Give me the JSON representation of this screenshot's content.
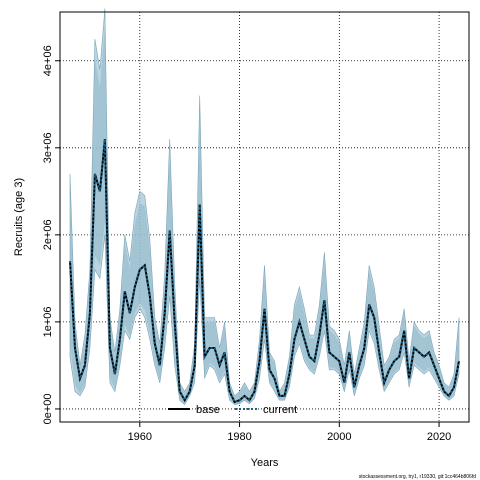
{
  "chart_data": {
    "type": "area",
    "title": "",
    "xlabel": "Years",
    "ylabel": "Recruits (age 3)",
    "xlim": [
      1944,
      2026
    ],
    "ylim": [
      -150000,
      4560000
    ],
    "x_ticks": [
      1960,
      1980,
      2000,
      2020
    ],
    "x_tick_labels": [
      "1960",
      "1980",
      "2000",
      "2020"
    ],
    "y_ticks": [
      0,
      1000000,
      2000000,
      3000000,
      4000000
    ],
    "y_tick_labels": [
      "0e+00",
      "1e+06",
      "2e+06",
      "3e+06",
      "4e+06"
    ],
    "grid": true,
    "legend_position": "bottom-center",
    "colors": {
      "band_base": "#a3c6d6",
      "band_current": "#8fb6c6",
      "base_line": "#000000",
      "current_line": "#1a5f85"
    },
    "x": [
      1946,
      1947,
      1948,
      1949,
      1950,
      1951,
      1952,
      1953,
      1954,
      1955,
      1956,
      1957,
      1958,
      1959,
      1960,
      1961,
      1962,
      1963,
      1964,
      1965,
      1966,
      1967,
      1968,
      1969,
      1970,
      1971,
      1972,
      1973,
      1974,
      1975,
      1976,
      1977,
      1978,
      1979,
      1980,
      1981,
      1982,
      1983,
      1984,
      1985,
      1986,
      1987,
      1988,
      1989,
      1990,
      1991,
      1992,
      1993,
      1994,
      1995,
      1996,
      1997,
      1998,
      1999,
      2000,
      2001,
      2002,
      2003,
      2004,
      2005,
      2006,
      2007,
      2008,
      2009,
      2010,
      2011,
      2012,
      2013,
      2014,
      2015,
      2016,
      2017,
      2018,
      2019,
      2020,
      2021,
      2022,
      2023,
      2024
    ],
    "series": [
      {
        "name": "base",
        "values": [
          1700000,
          700000,
          350000,
          500000,
          1100000,
          2700000,
          2500000,
          3100000,
          700000,
          400000,
          800000,
          1350000,
          1100000,
          1400000,
          1600000,
          1650000,
          1300000,
          750000,
          500000,
          1100000,
          2050000,
          1000000,
          200000,
          100000,
          200000,
          500000,
          2350000,
          600000,
          700000,
          700000,
          500000,
          650000,
          200000,
          80000,
          100000,
          150000,
          100000,
          200000,
          550000,
          1150000,
          450000,
          350000,
          150000,
          150000,
          400000,
          800000,
          1000000,
          800000,
          600000,
          550000,
          850000,
          1250000,
          650000,
          600000,
          550000,
          300000,
          650000,
          250000,
          500000,
          700000,
          1200000,
          1050000,
          650000,
          300000,
          450000,
          550000,
          600000,
          900000,
          350000,
          700000,
          650000,
          600000,
          650000,
          500000,
          350000,
          200000,
          150000,
          250000,
          550000
        ],
        "lower": [
          600000,
          200000,
          150000,
          250000,
          700000,
          1600000,
          1500000,
          2000000,
          300000,
          200000,
          500000,
          900000,
          800000,
          1050000,
          1150000,
          1050000,
          800000,
          500000,
          300000,
          700000,
          1300000,
          500000,
          100000,
          50000,
          150000,
          300000,
          1500000,
          350000,
          500000,
          450000,
          300000,
          400000,
          100000,
          50000,
          60000,
          100000,
          60000,
          120000,
          350000,
          800000,
          300000,
          200000,
          100000,
          100000,
          250000,
          600000,
          750000,
          550000,
          450000,
          400000,
          600000,
          900000,
          450000,
          450000,
          400000,
          200000,
          450000,
          150000,
          350000,
          500000,
          900000,
          750000,
          450000,
          200000,
          300000,
          400000,
          450000,
          650000,
          250000,
          500000,
          450000,
          400000,
          450000,
          350000,
          250000,
          150000,
          100000,
          150000,
          400000
        ],
        "upper": [
          2700000,
          1000000,
          500000,
          850000,
          1600000,
          4250000,
          3900000,
          4600000,
          1050000,
          650000,
          1150000,
          2000000,
          1700000,
          2250000,
          2500000,
          2450000,
          1950000,
          1050000,
          750000,
          1550000,
          3100000,
          1450000,
          300000,
          200000,
          300000,
          750000,
          3600000,
          1050000,
          1050000,
          1050000,
          700000,
          1000000,
          300000,
          150000,
          200000,
          300000,
          200000,
          300000,
          800000,
          1650000,
          650000,
          550000,
          200000,
          300000,
          600000,
          1200000,
          1400000,
          1150000,
          850000,
          850000,
          1200000,
          1800000,
          950000,
          900000,
          800000,
          500000,
          900000,
          400000,
          700000,
          1000000,
          1650000,
          1400000,
          950000,
          500000,
          600000,
          800000,
          850000,
          1150000,
          550000,
          1000000,
          900000,
          850000,
          900000,
          650000,
          500000,
          300000,
          250000,
          400000,
          1050000
        ]
      },
      {
        "name": "current",
        "values": [
          1700000,
          700000,
          350000,
          500000,
          1100000,
          2700000,
          2500000,
          3100000,
          700000,
          400000,
          800000,
          1350000,
          1100000,
          1400000,
          1600000,
          1650000,
          1300000,
          750000,
          500000,
          1100000,
          2050000,
          1000000,
          200000,
          100000,
          200000,
          500000,
          2350000,
          600000,
          700000,
          700000,
          500000,
          650000,
          200000,
          80000,
          100000,
          150000,
          100000,
          200000,
          550000,
          1150000,
          450000,
          350000,
          150000,
          150000,
          400000,
          800000,
          1000000,
          800000,
          600000,
          550000,
          850000,
          1250000,
          650000,
          600000,
          550000,
          300000,
          650000,
          250000,
          500000,
          700000,
          1200000,
          1050000,
          650000,
          300000,
          450000,
          550000,
          600000,
          900000,
          350000,
          700000,
          650000,
          600000,
          650000,
          500000,
          350000,
          200000,
          150000,
          250000,
          550000
        ]
      }
    ]
  },
  "legend": {
    "base_label": "base",
    "current_label": "current"
  },
  "footnote": "stockassessment.org, try1, r19330, git:1cc464b806fd"
}
